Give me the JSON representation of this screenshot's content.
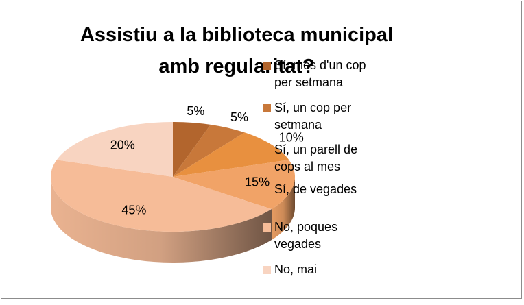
{
  "chart_data": {
    "type": "pie",
    "title": "Assistiu a la biblioteca municipal amb regularitat?",
    "categories": [
      "Sí, més d'un cop per setmana",
      "Sí, un cop per setmana",
      "Sí, un parell de cops al mes",
      "Sí, de vegades",
      "No, poques vegades",
      "No, mai"
    ],
    "values": [
      5,
      5,
      10,
      15,
      45,
      20
    ],
    "value_labels": [
      "5%",
      "5%",
      "10%",
      "15%",
      "45%",
      "20%"
    ],
    "colors": [
      "#b2652d",
      "#c8783a",
      "#e8903f",
      "#f1a367",
      "#f6bc98",
      "#f8d4c1"
    ],
    "legend": "right"
  }
}
